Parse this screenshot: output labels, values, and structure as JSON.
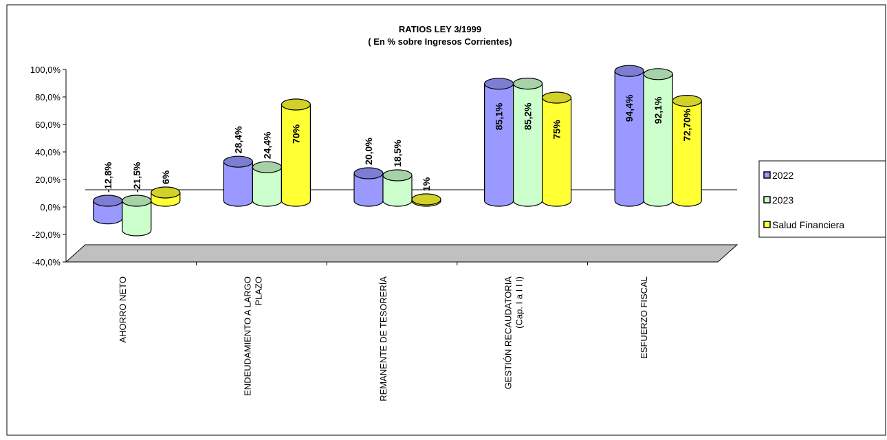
{
  "chart_data": {
    "type": "bar",
    "title": "RATIOS LEY 3/1999",
    "subtitle": "( En % sobre Ingresos Corrientes)",
    "categories": [
      [
        "AHORRO NETO"
      ],
      [
        "ENDEUDAMIENTO A LARGO",
        "PLAZO"
      ],
      [
        "REMANENTE DE TESORERÍA"
      ],
      [
        "GESTIÓN RECAUDATORIA",
        "(Cap. I a I I I)"
      ],
      [
        "ESFUERZO FISCAL"
      ]
    ],
    "series": [
      {
        "name": "2022",
        "values": [
          -12.8,
          28.4,
          20.0,
          85.1,
          94.4
        ],
        "labels": [
          "-12,8%",
          "28,4%",
          "20,0%",
          "85,1%",
          "94,4%"
        ],
        "color": "#9999ff"
      },
      {
        "name": "2023",
        "values": [
          -21.5,
          24.4,
          18.5,
          85.2,
          92.1
        ],
        "labels": [
          "-21,5%",
          "24,4%",
          "18,5%",
          "85,2%",
          "92,1%"
        ],
        "color": "#ccffcc"
      },
      {
        "name": "Salud Financiera",
        "values": [
          6,
          70,
          1,
          75,
          72.7
        ],
        "labels": [
          "6%",
          "70%",
          "1%",
          "75%",
          "72,70%"
        ],
        "color": "#ffff33"
      }
    ],
    "y_ticks": [
      "100,0%",
      "80,0%",
      "60,0%",
      "40,0%",
      "20,0%",
      "0,0%",
      "-20,0%",
      "-40,0%"
    ],
    "ylim": [
      -40,
      100
    ],
    "legend_position": "right",
    "floor_color": "#c0c0c0"
  }
}
